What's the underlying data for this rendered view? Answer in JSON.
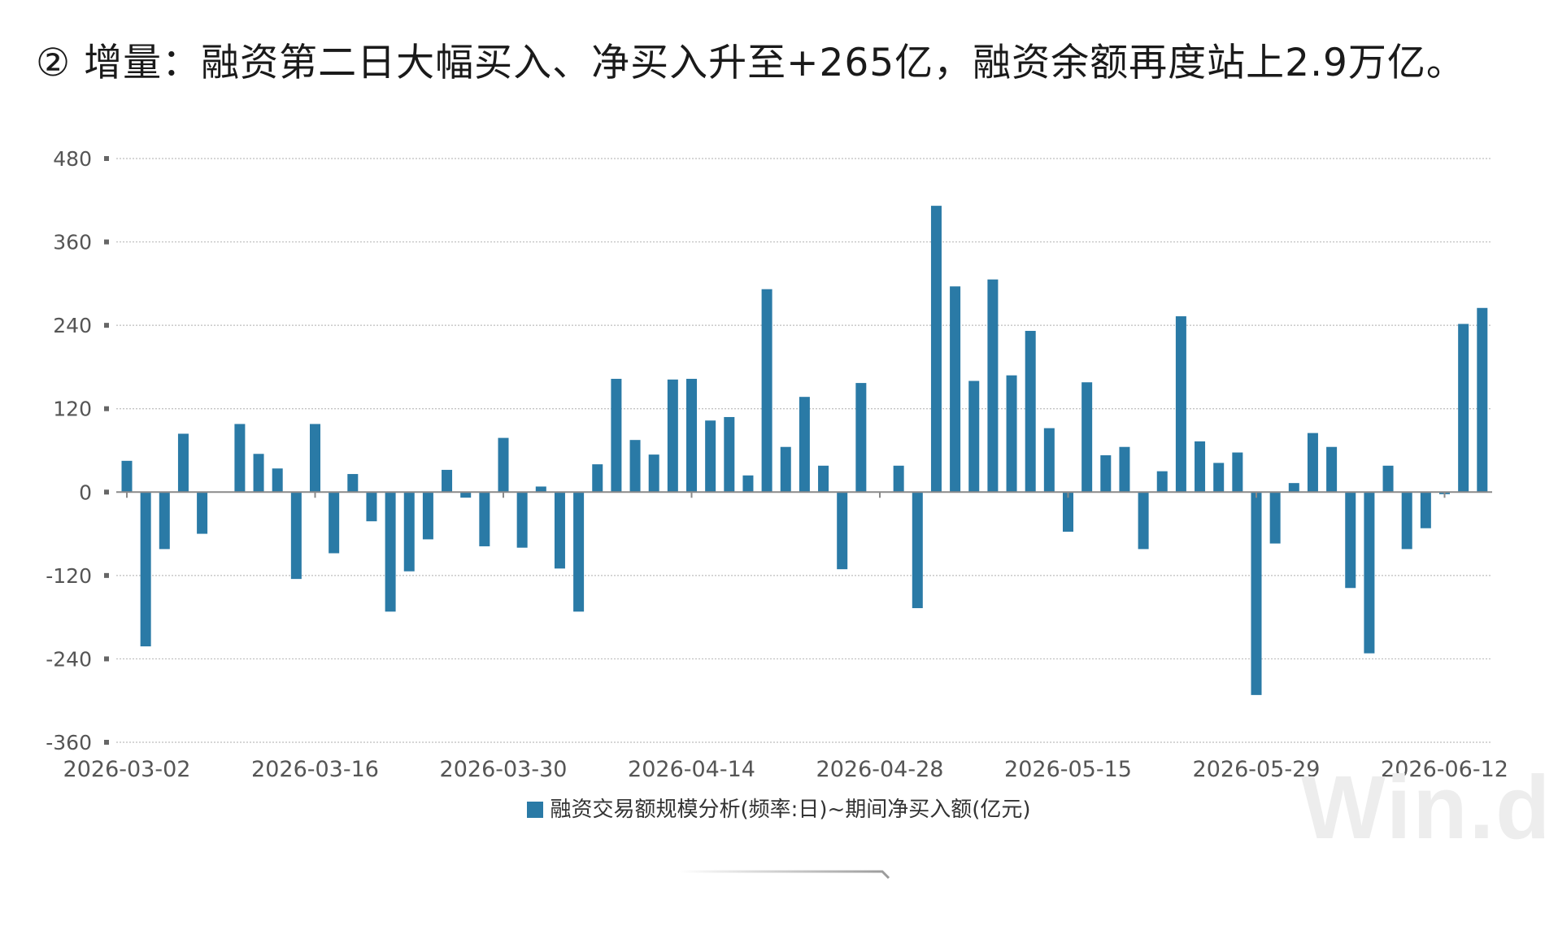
{
  "header": {
    "title": "② 增量：融资第二日大幅买入、净买入升至+265亿，融资余额再度站上2.9万亿。"
  },
  "watermark": "Win.d",
  "colors": {
    "bar": "#2a7aa6",
    "axis": "#666666",
    "grid": "#bdbdbd",
    "text": "#555555"
  },
  "chart_data": {
    "type": "bar",
    "title": "",
    "xlabel": "",
    "ylabel": "",
    "ylim": [
      -360,
      480
    ],
    "yticks": [
      480,
      360,
      240,
      120,
      0,
      -120,
      -240,
      -360
    ],
    "grid": true,
    "legend_position": "bottom",
    "xtick_labels": [
      "2026-03-02",
      "2026-03-16",
      "2026-03-30",
      "2026-04-14",
      "2026-04-28",
      "2026-05-15",
      "2026-05-29",
      "2026-06-12"
    ],
    "xtick_positions": [
      0,
      10,
      20,
      30,
      40,
      50,
      60,
      70
    ],
    "series": [
      {
        "name": "融资交易额规模分析(频率:日)~期间净买入额(亿元)",
        "values": [
          45,
          -222,
          -82,
          84,
          -60,
          0,
          98,
          55,
          34,
          -125,
          98,
          -88,
          26,
          -42,
          -172,
          -114,
          -68,
          32,
          -8,
          -78,
          78,
          -80,
          8,
          -110,
          -172,
          40,
          163,
          75,
          54,
          162,
          163,
          103,
          108,
          24,
          292,
          65,
          137,
          38,
          -111,
          157,
          0,
          38,
          -167,
          412,
          296,
          160,
          306,
          168,
          232,
          92,
          -57,
          158,
          53,
          65,
          -82,
          30,
          253,
          73,
          42,
          57,
          -292,
          -74,
          13,
          85,
          65,
          -138,
          -232,
          38,
          -82,
          -52,
          -3,
          242,
          265
        ]
      }
    ]
  }
}
